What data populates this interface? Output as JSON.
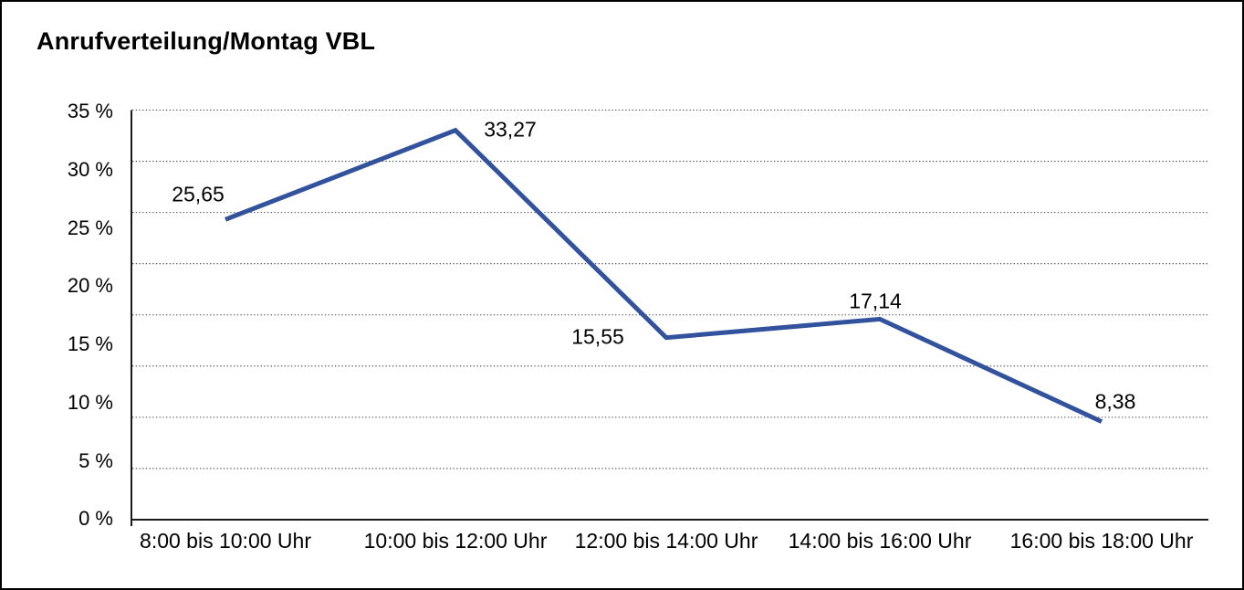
{
  "chart_data": {
    "type": "line",
    "title": "Anrufverteilung/Montag VBL",
    "categories": [
      "8:00 bis 10:00 Uhr",
      "10:00 bis 12:00 Uhr",
      "12:00 bis 14:00 Uhr",
      "14:00 bis 16:00 Uhr",
      "16:00 bis 18:00 Uhr"
    ],
    "values": [
      25.65,
      33.27,
      15.55,
      17.14,
      8.38
    ],
    "value_labels": [
      "25,65",
      "33,27",
      "15,55",
      "17,14",
      "8,38"
    ],
    "ytick_labels": [
      "35 %",
      "30 %",
      "25 %",
      "20 %",
      "15 %",
      "10 %",
      "5 %",
      "0 %"
    ],
    "ylim": [
      0,
      35
    ],
    "xlabel": "",
    "ylabel": "",
    "grid": "dotted horizontal, 8 equal intervals",
    "legend": "none",
    "line_color": "#32529D",
    "axis_color": "#1a1a1a",
    "text_color": "#000000"
  }
}
